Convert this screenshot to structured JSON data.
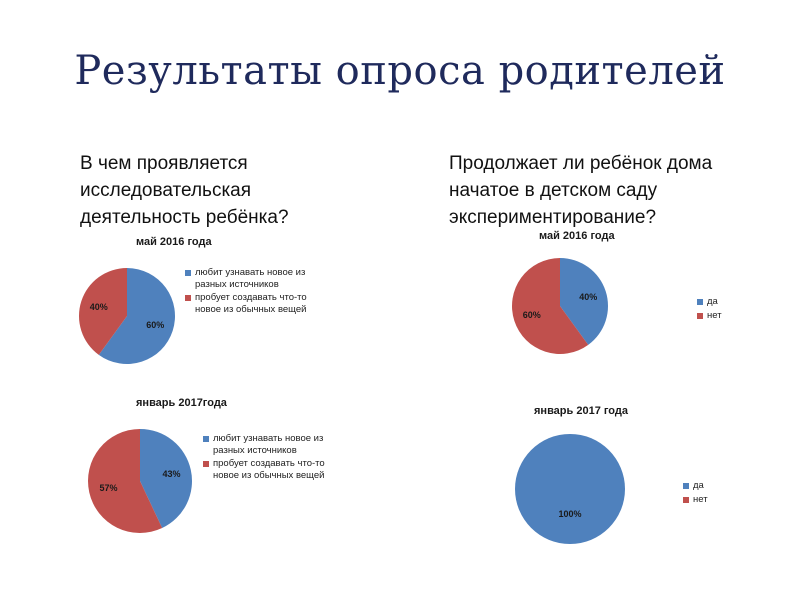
{
  "title": "Результаты опроса родителей",
  "questions": {
    "left": [
      "В чем проявляется",
      "исследовательская",
      "деятельность ребёнка?"
    ],
    "right": [
      "Продолжает ли ребёнок дома",
      "начатое в детском саду",
      "экспериментирование?"
    ]
  },
  "colors": {
    "blue": "#4f81bd",
    "red": "#c0504d"
  },
  "chart_data": [
    {
      "type": "pie",
      "title": "май 2016 года",
      "categories": [
        "любит узнавать новое из разных источников",
        "пробует создавать что-то новое из обычных вещей"
      ],
      "values": [
        60,
        40
      ],
      "labels": [
        "60%",
        "40%"
      ],
      "colors": [
        "#4f81bd",
        "#c0504d"
      ],
      "legend": "right"
    },
    {
      "type": "pie",
      "title": "январь 2017года",
      "categories": [
        "любит узнавать новое из разных источников",
        "пробует создавать что-то новое из обычных вещей"
      ],
      "values": [
        43,
        57
      ],
      "labels": [
        "43%",
        "57%"
      ],
      "colors": [
        "#4f81bd",
        "#c0504d"
      ],
      "legend": "right"
    },
    {
      "type": "pie",
      "title": "май 2016 года",
      "categories": [
        "да",
        "нет"
      ],
      "values": [
        40,
        60
      ],
      "labels": [
        "40%",
        "60%"
      ],
      "colors": [
        "#4f81bd",
        "#c0504d"
      ],
      "legend": "right"
    },
    {
      "type": "pie",
      "title": "январь 2017 года",
      "categories": [
        "да",
        "нет"
      ],
      "values": [
        100,
        0
      ],
      "labels": [
        "100%",
        ""
      ],
      "colors": [
        "#4f81bd",
        "#c0504d"
      ],
      "legend": "right"
    }
  ]
}
